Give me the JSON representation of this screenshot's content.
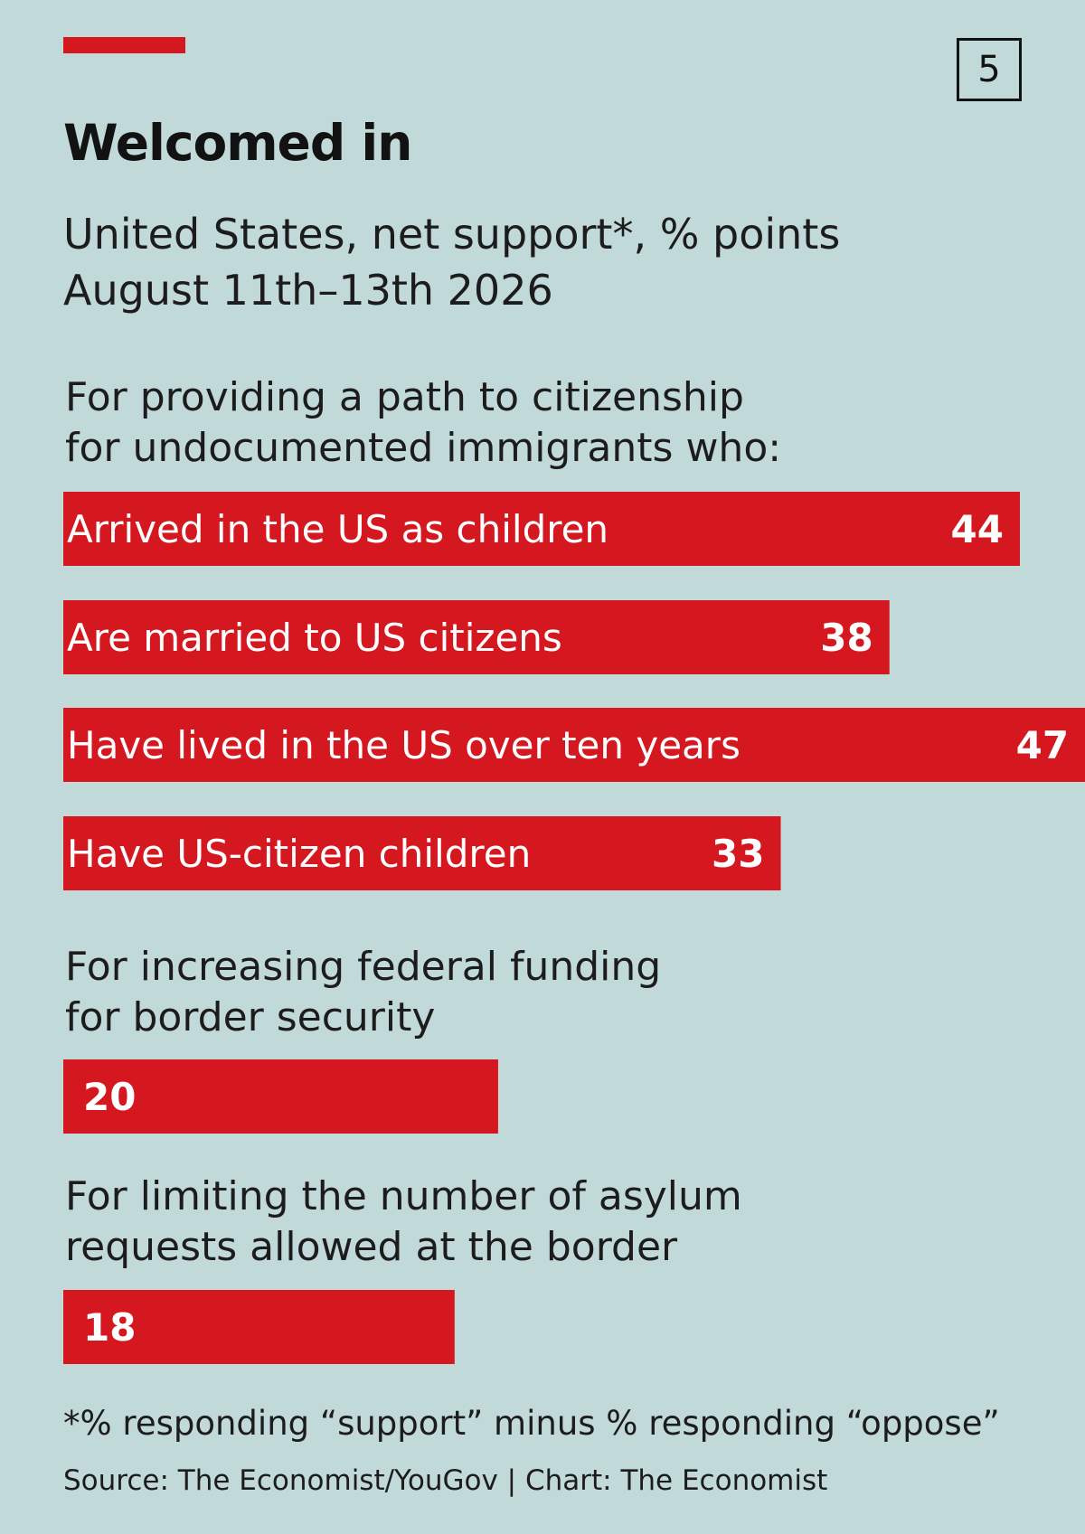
{
  "page_number": "5",
  "colors": {
    "bar": "#d5171f",
    "background": "#c2d9da",
    "accent": "#d5171f"
  },
  "chart_data": {
    "type": "bar",
    "orientation": "horizontal",
    "title": "Welcomed in",
    "subtitle": [
      "United States, net support*, % points",
      "August 11th–13th 2026"
    ],
    "groups": [
      {
        "label": [
          "For providing a path to citizenship",
          "for undocumented immigrants who:"
        ],
        "bars": [
          {
            "label": "Arrived in the US as children",
            "value": 44
          },
          {
            "label": "Are married to US citizens",
            "value": 38
          },
          {
            "label": "Have lived in the US over ten years",
            "value": 47
          },
          {
            "label": "Have US-citizen children",
            "value": 33
          }
        ]
      },
      {
        "label": [
          "For increasing federal funding",
          "for border security"
        ],
        "bars": [
          {
            "label": "",
            "value": 20
          }
        ]
      },
      {
        "label": [
          "For limiting the number of asylum",
          "requests allowed at the border"
        ],
        "bars": [
          {
            "label": "",
            "value": 18
          }
        ]
      }
    ],
    "footnote": "*% responding “support” minus % responding “oppose”",
    "source": "Source: The Economist/YouGov | Chart: The Economist"
  }
}
